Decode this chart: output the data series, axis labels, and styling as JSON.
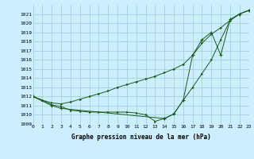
{
  "xlabel": "Graphe pression niveau de la mer (hPa)",
  "ylim": [
    1009,
    1022
  ],
  "xlim": [
    0,
    23
  ],
  "yticks": [
    1009,
    1010,
    1011,
    1012,
    1013,
    1014,
    1015,
    1016,
    1017,
    1018,
    1019,
    1020,
    1021
  ],
  "xticks": [
    0,
    1,
    2,
    3,
    4,
    5,
    6,
    7,
    8,
    9,
    10,
    11,
    12,
    13,
    14,
    15,
    16,
    17,
    18,
    19,
    20,
    21,
    22,
    23
  ],
  "bg_color": "#cceeff",
  "grid_color": "#99cccc",
  "line_color": "#1a5c1a",
  "line1_x": [
    0,
    1,
    2,
    3,
    4,
    5,
    6,
    7,
    8,
    9,
    10,
    11,
    12,
    13,
    14,
    15,
    16,
    17,
    18,
    19,
    20,
    21,
    22,
    23
  ],
  "line1_y": [
    1012.0,
    1011.6,
    1011.1,
    1010.9,
    1010.5,
    1010.4,
    1010.3,
    1010.3,
    1010.3,
    1010.3,
    1010.3,
    1010.2,
    1010.0,
    1009.3,
    1009.6,
    1010.1,
    1011.6,
    1013.0,
    1014.5,
    1016.0,
    1018.2,
    1020.3,
    1021.0,
    1021.4
  ],
  "line2_x": [
    0,
    1,
    2,
    3,
    4,
    5,
    6,
    7,
    8,
    9,
    10,
    11,
    12,
    13,
    14,
    15,
    16,
    17,
    18,
    19,
    20,
    21,
    22,
    23
  ],
  "line2_y": [
    1012.0,
    1011.6,
    1011.3,
    1011.2,
    1011.4,
    1011.7,
    1012.0,
    1012.3,
    1012.6,
    1013.0,
    1013.3,
    1013.6,
    1013.9,
    1014.2,
    1014.6,
    1015.0,
    1015.5,
    1016.5,
    1017.8,
    1018.8,
    1019.5,
    1020.3,
    1021.0,
    1021.4
  ],
  "line3_x": [
    0,
    2,
    3,
    14,
    15,
    16,
    17,
    18,
    19,
    20,
    21,
    22,
    23
  ],
  "line3_y": [
    1012.0,
    1011.0,
    1010.7,
    1009.6,
    1010.1,
    1011.6,
    1016.5,
    1018.2,
    1019.0,
    1016.5,
    1020.4,
    1021.0,
    1021.4
  ]
}
